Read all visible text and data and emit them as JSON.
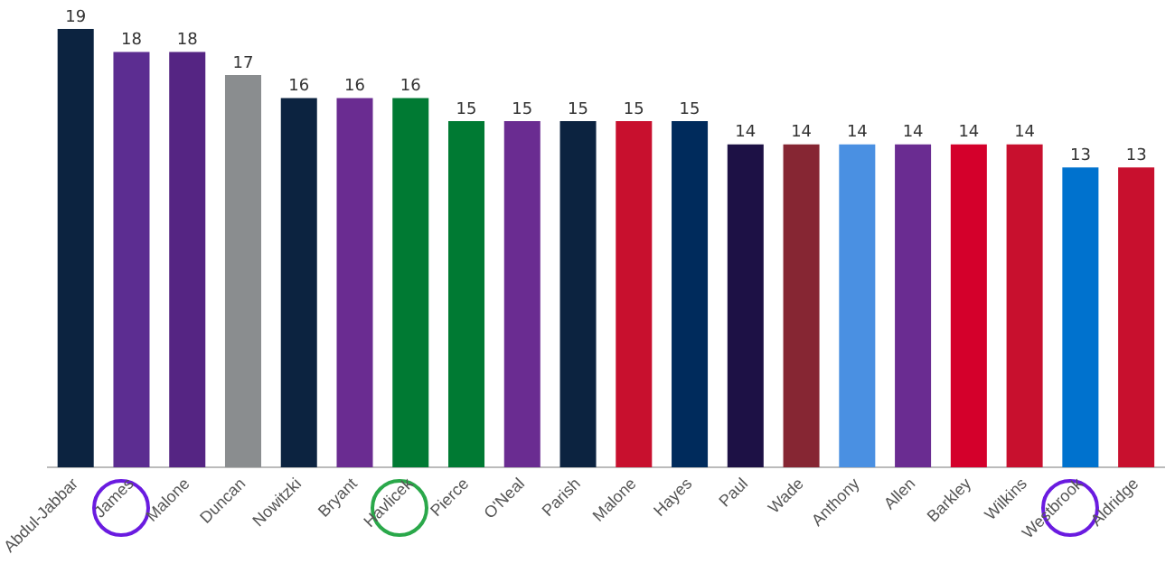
{
  "chart_data": {
    "type": "bar",
    "categories": [
      "Abdul-Jabbar",
      "James",
      "Malone",
      "Duncan",
      "Nowitzki",
      "Bryant",
      "Havlicek",
      "Pierce",
      "O'Neal",
      "Parish",
      "Malone",
      "Hayes",
      "Paul",
      "Wade",
      "Anthony",
      "Allen",
      "Barkley",
      "Wilkins",
      "Westbrook",
      "Aldridge"
    ],
    "values": [
      19,
      18,
      18,
      17,
      16,
      16,
      16,
      15,
      15,
      15,
      15,
      15,
      14,
      14,
      14,
      14,
      14,
      14,
      13,
      13
    ],
    "colors": [
      "#0c2340",
      "#5c2d91",
      "#552583",
      "#8a8d8f",
      "#0c2340",
      "#6a2c91",
      "#007a33",
      "#007a33",
      "#6a2c91",
      "#0c2340",
      "#c8102e",
      "#002b5c",
      "#1d1145",
      "#862633",
      "#4a90e2",
      "#6a2c91",
      "#d4002b",
      "#c8102e",
      "#0072ce",
      "#c8102e"
    ],
    "ylim": [
      0,
      19
    ],
    "tick_labels": "x",
    "grid": false,
    "legend": false,
    "data_labels": true
  }
}
